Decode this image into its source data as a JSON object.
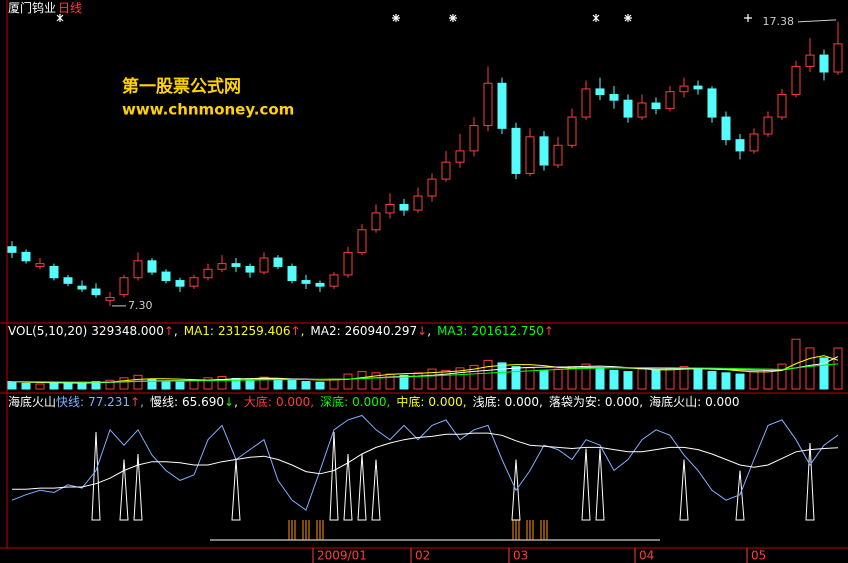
{
  "header": {
    "watermark": "第一股票公式网",
    "watermark_url": "www.chnmoney.com"
  },
  "chart_data": [
    {
      "type": "candlestick",
      "title": "厦门钨业",
      "subtitle": "日线",
      "up_color": "#ff3c3c",
      "down_color": "#54fcfc",
      "ylim": [
        6.8,
        17.8
      ],
      "annotations": [
        {
          "value": 17.38,
          "label": "17.38"
        },
        {
          "value": 7.3,
          "label": "7.30"
        }
      ],
      "categories": [
        null,
        null,
        null,
        null,
        null,
        null,
        null,
        null,
        null,
        null,
        null,
        null,
        null,
        null,
        null,
        null,
        null,
        null,
        null,
        null,
        null,
        null,
        "2009/01",
        null,
        null,
        null,
        null,
        null,
        null,
        "02",
        null,
        null,
        null,
        null,
        null,
        null,
        "03",
        null,
        null,
        null,
        null,
        null,
        null,
        null,
        null,
        "04",
        null,
        null,
        null,
        null,
        null,
        null,
        null,
        "05",
        null,
        null,
        null,
        null,
        null,
        null
      ],
      "ohlc": [
        [
          9.4,
          9.6,
          9.0,
          9.2
        ],
        [
          9.2,
          9.3,
          8.8,
          8.9
        ],
        [
          8.7,
          9.0,
          8.6,
          8.8
        ],
        [
          8.7,
          8.8,
          8.2,
          8.3
        ],
        [
          8.3,
          8.4,
          8.0,
          8.1
        ],
        [
          8.0,
          8.2,
          7.8,
          7.9
        ],
        [
          7.9,
          8.1,
          7.6,
          7.7
        ],
        [
          7.5,
          7.8,
          7.3,
          7.6
        ],
        [
          7.7,
          8.4,
          7.6,
          8.3
        ],
        [
          8.3,
          9.2,
          8.2,
          8.9
        ],
        [
          8.9,
          9.0,
          8.4,
          8.5
        ],
        [
          8.5,
          8.6,
          8.1,
          8.2
        ],
        [
          8.2,
          8.3,
          7.8,
          8.0
        ],
        [
          8.0,
          8.4,
          7.9,
          8.3
        ],
        [
          8.3,
          8.8,
          8.2,
          8.6
        ],
        [
          8.6,
          9.1,
          8.5,
          8.8
        ],
        [
          8.8,
          9.0,
          8.5,
          8.7
        ],
        [
          8.7,
          8.8,
          8.3,
          8.5
        ],
        [
          8.5,
          9.2,
          8.4,
          9.0
        ],
        [
          9.0,
          9.1,
          8.6,
          8.7
        ],
        [
          8.7,
          8.8,
          8.1,
          8.2
        ],
        [
          8.2,
          8.4,
          7.9,
          8.1
        ],
        [
          8.1,
          8.2,
          7.8,
          8.0
        ],
        [
          8.0,
          8.5,
          7.9,
          8.4
        ],
        [
          8.4,
          9.4,
          8.3,
          9.2
        ],
        [
          9.2,
          10.2,
          9.1,
          10.0
        ],
        [
          10.0,
          10.9,
          9.9,
          10.6
        ],
        [
          10.6,
          11.3,
          10.4,
          10.9
        ],
        [
          10.9,
          11.1,
          10.5,
          10.7
        ],
        [
          10.7,
          11.5,
          10.6,
          11.2
        ],
        [
          11.2,
          12.0,
          11.0,
          11.8
        ],
        [
          11.8,
          12.8,
          11.7,
          12.4
        ],
        [
          12.4,
          13.4,
          12.2,
          12.8
        ],
        [
          12.8,
          14.0,
          12.6,
          13.7
        ],
        [
          13.7,
          15.8,
          13.5,
          15.2
        ],
        [
          15.2,
          15.4,
          13.4,
          13.6
        ],
        [
          13.6,
          13.8,
          11.8,
          12.0
        ],
        [
          12.0,
          13.6,
          11.9,
          13.3
        ],
        [
          13.3,
          13.5,
          12.1,
          12.3
        ],
        [
          12.3,
          13.3,
          12.2,
          13.0
        ],
        [
          13.0,
          14.3,
          12.9,
          14.0
        ],
        [
          14.0,
          15.3,
          13.9,
          15.0
        ],
        [
          15.0,
          15.4,
          14.6,
          14.8
        ],
        [
          14.8,
          15.1,
          14.3,
          14.6
        ],
        [
          14.6,
          14.8,
          13.8,
          14.0
        ],
        [
          14.0,
          14.8,
          13.9,
          14.5
        ],
        [
          14.5,
          14.7,
          14.1,
          14.3
        ],
        [
          14.3,
          15.1,
          14.2,
          14.9
        ],
        [
          14.9,
          15.4,
          14.7,
          15.1
        ],
        [
          15.1,
          15.3,
          14.8,
          15.0
        ],
        [
          15.0,
          15.1,
          13.8,
          14.0
        ],
        [
          14.0,
          14.2,
          13.0,
          13.2
        ],
        [
          13.2,
          13.4,
          12.5,
          12.8
        ],
        [
          12.8,
          13.6,
          12.7,
          13.4
        ],
        [
          13.4,
          14.2,
          13.3,
          14.0
        ],
        [
          14.0,
          15.0,
          13.9,
          14.8
        ],
        [
          14.8,
          16.0,
          14.7,
          15.8
        ],
        [
          15.8,
          16.8,
          15.6,
          16.2
        ],
        [
          16.2,
          16.4,
          15.3,
          15.6
        ],
        [
          15.6,
          17.38,
          15.5,
          16.6
        ]
      ]
    },
    {
      "type": "bar",
      "ylim": [
        0,
        450000
      ],
      "header": [
        {
          "name": "VOL(5,10,20)",
          "value": 329348,
          "label": "329348.000",
          "arrow": "↑",
          "color": "#ffffff",
          "arrow_color": "#ff3c3c",
          "sep": ","
        },
        {
          "name": "MA1:",
          "value": 231259.406,
          "label": "231259.406",
          "arrow": "↑",
          "color": "#ffff00",
          "arrow_color": "#ff3c3c",
          "sep": ","
        },
        {
          "name": "MA2:",
          "value": 260940.297,
          "label": "260940.297",
          "arrow": "↓",
          "color": "#ffffff",
          "arrow_color": "#ff3c3c",
          "sep": ","
        },
        {
          "name": "MA3:",
          "value": 201612.75,
          "label": "201612.750",
          "arrow": "↑",
          "color": "#00ff00",
          "arrow_color": "#ff3c3c"
        }
      ],
      "values": [
        60000,
        45000,
        40000,
        50000,
        45000,
        55000,
        60000,
        70000,
        90000,
        110000,
        80000,
        60000,
        55000,
        70000,
        90000,
        100000,
        85000,
        70000,
        95000,
        80000,
        70000,
        60000,
        55000,
        80000,
        120000,
        140000,
        130000,
        120000,
        110000,
        130000,
        160000,
        150000,
        170000,
        190000,
        230000,
        210000,
        180000,
        170000,
        150000,
        160000,
        180000,
        200000,
        170000,
        150000,
        140000,
        160000,
        150000,
        170000,
        180000,
        160000,
        140000,
        130000,
        120000,
        140000,
        160000,
        200000,
        400000,
        330000,
        250000,
        329348
      ],
      "series": [
        {
          "color": "#ffff00",
          "values": [
            60000,
            55000,
            52000,
            50000,
            48000,
            47000,
            50000,
            56000,
            66000,
            77000,
            82000,
            82000,
            79000,
            75000,
            71000,
            75000,
            80000,
            83000,
            88000,
            86000,
            80000,
            76000,
            72000,
            73000,
            77000,
            91000,
            105000,
            118000,
            124000,
            126000,
            132000,
            138000,
            146000,
            160000,
            180000,
            190000,
            196000,
            196000,
            188000,
            174000,
            168000,
            172000,
            172000,
            172000,
            168000,
            164000,
            154000,
            154000,
            160000,
            164000,
            160000,
            156000,
            146000,
            138000,
            138000,
            150000,
            204000,
            246000,
            268000,
            231259.406
          ]
        },
        {
          "color": "#ffffff",
          "values": [
            60000,
            58000,
            55000,
            53000,
            51000,
            50000,
            51000,
            53000,
            57000,
            62000,
            64000,
            66000,
            67000,
            68000,
            70000,
            76000,
            81000,
            81000,
            81000,
            81000,
            80000,
            79000,
            77000,
            78000,
            79000,
            84000,
            90000,
            96000,
            100000,
            103000,
            110000,
            120000,
            132000,
            142000,
            150000,
            160000,
            168000,
            174000,
            176000,
            177000,
            178000,
            182000,
            184000,
            180000,
            172000,
            166000,
            162000,
            163000,
            165000,
            164000,
            162000,
            160000,
            155000,
            152000,
            150000,
            153000,
            170000,
            190000,
            205000,
            260940.297
          ]
        },
        {
          "color": "#00ff00",
          "values": [
            60000,
            59000,
            58000,
            57000,
            56000,
            55000,
            55000,
            56000,
            58000,
            60000,
            62000,
            63000,
            64000,
            65000,
            66000,
            68000,
            70000,
            71000,
            73000,
            74000,
            75000,
            76000,
            77000,
            78000,
            80000,
            84000,
            88000,
            92000,
            96000,
            100000,
            104000,
            110000,
            116000,
            122000,
            128000,
            134000,
            140000,
            146000,
            152000,
            157000,
            162000,
            165000,
            168000,
            170000,
            171000,
            172000,
            172000,
            171000,
            170000,
            169000,
            168000,
            166000,
            164000,
            162000,
            160000,
            158000,
            170000,
            182000,
            192000,
            201612.75
          ]
        }
      ]
    },
    {
      "type": "line",
      "title": "海底火山",
      "ylim": [
        -20,
        100
      ],
      "header": [
        {
          "name": "快线:",
          "value": 77.231,
          "label": "77.231",
          "arrow": "↑",
          "color": "#7fb0ff",
          "arrow_color": "#ff3c3c",
          "sep": ","
        },
        {
          "name": "慢线:",
          "value": 65.69,
          "label": "65.690",
          "arrow": "↓",
          "color": "#ffffff",
          "arrow_color": "#00ff00",
          "sep": ","
        },
        {
          "name": "大底:",
          "value": 0,
          "label": "0.000",
          "color": "#ff3c3c",
          "sep": ","
        },
        {
          "name": "深底:",
          "value": 0,
          "label": "0.000",
          "color": "#00ff00",
          "sep": ","
        },
        {
          "name": "中底:",
          "value": 0,
          "label": "0.000",
          "color": "#ffff00",
          "sep": ","
        },
        {
          "name": "浅底:",
          "value": 0,
          "label": "0.000",
          "color": "#ffffff",
          "sep": ","
        },
        {
          "name": "落袋为安:",
          "value": 0,
          "label": "0.000",
          "color": "#ffffff",
          "sep": ","
        },
        {
          "name": "海底火山:",
          "value": 0,
          "label": "0.000",
          "color": "#ffffff"
        }
      ],
      "series": [
        {
          "color": "#7fb0ff",
          "values": [
            18,
            23,
            27,
            25,
            32,
            29,
            45,
            82,
            68,
            82,
            59,
            45,
            36,
            41,
            73,
            86,
            55,
            64,
            73,
            36,
            18,
            9,
            45,
            82,
            91,
            95,
            82,
            73,
            86,
            73,
            86,
            91,
            73,
            82,
            86,
            55,
            27,
            45,
            68,
            64,
            55,
            73,
            68,
            45,
            55,
            73,
            82,
            77,
            59,
            45,
            27,
            18,
            23,
            55,
            86,
            91,
            73,
            50,
            68,
            77.231
          ]
        },
        {
          "color": "#ffffff",
          "values": [
            28,
            28,
            29,
            29,
            30,
            30,
            33,
            38,
            45,
            50,
            53,
            53,
            52,
            50,
            50,
            53,
            55,
            57,
            58,
            55,
            50,
            44,
            42,
            45,
            52,
            60,
            66,
            70,
            73,
            75,
            76,
            78,
            78,
            79,
            79,
            77,
            72,
            68,
            67,
            66,
            65,
            66,
            66,
            64,
            62,
            62,
            64,
            66,
            66,
            64,
            60,
            55,
            50,
            48,
            50,
            56,
            62,
            64,
            65,
            65.69
          ]
        }
      ],
      "spikes": {
        "color": "#ffffff",
        "values": [
          null,
          null,
          null,
          null,
          null,
          null,
          80,
          null,
          55,
          60,
          null,
          null,
          null,
          null,
          null,
          null,
          55,
          null,
          null,
          null,
          null,
          null,
          null,
          80,
          60,
          60,
          55,
          null,
          null,
          null,
          null,
          null,
          null,
          null,
          null,
          null,
          55,
          null,
          null,
          null,
          null,
          65,
          65,
          null,
          null,
          null,
          null,
          null,
          55,
          null,
          null,
          null,
          45,
          null,
          null,
          null,
          null,
          70,
          null,
          null
        ]
      },
      "bars": {
        "color": "#ff9900",
        "values": [
          null,
          null,
          null,
          null,
          null,
          null,
          null,
          null,
          null,
          null,
          null,
          null,
          null,
          null,
          null,
          null,
          null,
          null,
          null,
          null,
          -18,
          -18,
          -18,
          null,
          null,
          null,
          null,
          null,
          null,
          null,
          null,
          null,
          null,
          null,
          null,
          null,
          -18,
          -18,
          -18,
          null,
          null,
          null,
          null,
          null,
          null,
          null,
          null,
          null,
          null,
          null,
          null,
          null,
          null,
          null,
          null,
          null,
          null,
          null,
          null,
          null
        ]
      }
    }
  ]
}
